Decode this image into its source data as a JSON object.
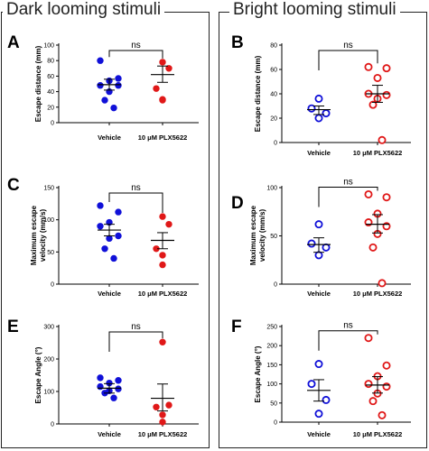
{
  "column_titles": {
    "left": "Dark looming stimuli",
    "right": "Bright looming stimuli"
  },
  "colors": {
    "vehicle": "#1010d8",
    "plx": "#e01818",
    "axis": "#000000",
    "bars": "#000000"
  },
  "chart_data": [
    {
      "panel": "A",
      "type": "scatter",
      "marker": "filled",
      "ylabel": "Escape distance (mm)",
      "ylim": [
        0,
        100
      ],
      "yticks": [
        0,
        20,
        40,
        60,
        80,
        100
      ],
      "categories": [
        "Vehicle",
        "10 μM PLX5622"
      ],
      "series": [
        {
          "values": [
            80,
            57,
            54,
            48,
            48,
            40,
            29,
            19
          ],
          "mean": 49,
          "sem_low": 42,
          "sem_high": 56
        },
        {
          "values": [
            78,
            70,
            44,
            30,
            29
          ],
          "mean": 62,
          "sem_low": 52,
          "sem_high": 73
        }
      ],
      "significance": "ns"
    },
    {
      "panel": "B",
      "type": "scatter",
      "marker": "open",
      "ylabel": "Escape distance (mm)",
      "ylim": [
        0,
        80
      ],
      "yticks": [
        0,
        20,
        40,
        60,
        80
      ],
      "categories": [
        "Vehicle",
        "10 μM PLX5622"
      ],
      "series": [
        {
          "values": [
            36,
            28,
            24,
            20
          ],
          "mean": 27,
          "sem_low": 23,
          "sem_high": 30
        },
        {
          "values": [
            62,
            61,
            53,
            40,
            39,
            36,
            31,
            2
          ],
          "mean": 40,
          "sem_low": 33,
          "sem_high": 47
        }
      ],
      "significance": "ns"
    },
    {
      "panel": "C",
      "type": "scatter",
      "marker": "filled",
      "ylabel": "Maximum escape velocity (mm/s)",
      "ylim": [
        0,
        150
      ],
      "yticks": [
        0,
        50,
        100,
        150
      ],
      "categories": [
        "Vehicle",
        "10 μM PLX5622"
      ],
      "series": [
        {
          "values": [
            122,
            112,
            96,
            90,
            75,
            71,
            55,
            40
          ],
          "mean": 84,
          "sem_low": 75,
          "sem_high": 93
        },
        {
          "values": [
            105,
            93,
            55,
            45,
            30
          ],
          "mean": 68,
          "sem_low": 55,
          "sem_high": 80
        }
      ],
      "significance": "ns"
    },
    {
      "panel": "D",
      "type": "scatter",
      "marker": "open",
      "ylabel": "Maximum escape velocity (mm/s)",
      "ylim": [
        0,
        100
      ],
      "yticks": [
        0,
        50,
        100
      ],
      "categories": [
        "Vehicle",
        "10 μM PLX5622"
      ],
      "series": [
        {
          "values": [
            62,
            42,
            38,
            30
          ],
          "mean": 41,
          "sem_low": 33,
          "sem_high": 48
        },
        {
          "values": [
            93,
            90,
            73,
            64,
            60,
            52,
            38,
            1
          ],
          "mean": 62,
          "sem_low": 53,
          "sem_high": 72
        }
      ],
      "significance": "ns"
    },
    {
      "panel": "E",
      "type": "scatter",
      "marker": "filled",
      "ylabel": "Escape Angle (°)",
      "ylim": [
        0,
        300
      ],
      "yticks": [
        0,
        100,
        200,
        300
      ],
      "categories": [
        "Vehicle",
        "10 μM PLX5622"
      ],
      "series": [
        {
          "values": [
            142,
            134,
            126,
            115,
            108,
            102,
            95,
            80
          ],
          "mean": 110,
          "sem_low": 95,
          "sem_high": 124
        },
        {
          "values": [
            252,
            58,
            52,
            28,
            6
          ],
          "mean": 79,
          "sem_low": 40,
          "sem_high": 123
        }
      ],
      "significance": "ns"
    },
    {
      "panel": "F",
      "type": "scatter",
      "marker": "open",
      "ylabel": "Escape Angle (°)",
      "ylim": [
        0,
        250
      ],
      "yticks": [
        0,
        50,
        100,
        150,
        200,
        250
      ],
      "categories": [
        "Vehicle",
        "10 μM PLX5622"
      ],
      "series": [
        {
          "values": [
            152,
            100,
            58,
            22
          ],
          "mean": 83,
          "sem_low": 55,
          "sem_high": 111
        },
        {
          "values": [
            220,
            148,
            120,
            100,
            93,
            75,
            55,
            18
          ],
          "mean": 97,
          "sem_low": 76,
          "sem_high": 119
        }
      ],
      "significance": "ns"
    }
  ]
}
